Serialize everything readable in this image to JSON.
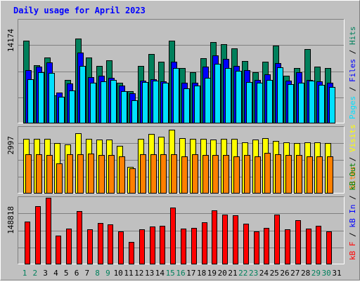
{
  "title": "Daily usage for April 2023",
  "chart_data": [
    {
      "type": "bar",
      "title": "Daily usage for April 2023",
      "categories": [
        "1",
        "2",
        "3",
        "4",
        "5",
        "6",
        "7",
        "8",
        "9",
        "10",
        "11",
        "12",
        "13",
        "14",
        "15",
        "16",
        "17",
        "18",
        "19",
        "20",
        "21",
        "22",
        "23",
        "24",
        "25",
        "26",
        "27",
        "28",
        "29",
        "30",
        "31"
      ],
      "weekend_days": [
        "1",
        "2",
        "8",
        "9",
        "15",
        "16",
        "22",
        "23",
        "29",
        "30"
      ],
      "ytick": "14174",
      "ylim": [
        0,
        17000
      ],
      "axis_label_parts": [
        "Pages",
        "Files",
        "Hits"
      ],
      "series": [
        {
          "name": "Hits",
          "color": "#00805c",
          "values": [
            13500,
            9500,
            10800,
            4500,
            7000,
            13900,
            10800,
            9400,
            10300,
            6600,
            5200,
            9400,
            11300,
            10100,
            13500,
            9000,
            8300,
            10600,
            13300,
            12900,
            12300,
            10200,
            8300,
            10100,
            12700,
            7800,
            9000,
            12100,
            9200,
            9000,
            null
          ]
        },
        {
          "name": "Files",
          "color": "#0000ff",
          "values": [
            8700,
            9300,
            10000,
            5000,
            6500,
            11600,
            7500,
            7800,
            7400,
            6100,
            4800,
            6900,
            7200,
            6800,
            10100,
            6600,
            6600,
            9300,
            11100,
            10500,
            9400,
            8700,
            7000,
            8000,
            9800,
            6900,
            8300,
            7100,
            6800,
            6600,
            null
          ]
        },
        {
          "name": "Pages",
          "color": "#00e0ff",
          "values": [
            7200,
            8300,
            8200,
            4300,
            5300,
            9400,
            6600,
            6800,
            7000,
            5200,
            3700,
            6700,
            6900,
            6600,
            9000,
            5700,
            6100,
            7400,
            9700,
            9000,
            8600,
            6700,
            6600,
            7000,
            9100,
            6400,
            6600,
            6900,
            6200,
            5900,
            null
          ]
        }
      ]
    },
    {
      "type": "bar",
      "categories": [
        "1",
        "2",
        "3",
        "4",
        "5",
        "6",
        "7",
        "8",
        "9",
        "10",
        "11",
        "12",
        "13",
        "14",
        "15",
        "16",
        "17",
        "18",
        "19",
        "20",
        "21",
        "22",
        "23",
        "24",
        "25",
        "26",
        "27",
        "28",
        "29",
        "30",
        "31"
      ],
      "ytick": "2997",
      "ylim": [
        0,
        3600
      ],
      "axis_label_parts": [
        "Sites",
        "Visits"
      ],
      "series": [
        {
          "name": "Visits",
          "color": "#ffff00",
          "values": [
            2950,
            2950,
            2950,
            2700,
            2650,
            3250,
            2950,
            2900,
            2900,
            2550,
            1400,
            2950,
            3200,
            3050,
            3450,
            3000,
            2950,
            2950,
            2900,
            2950,
            2950,
            2750,
            2900,
            3000,
            2850,
            2750,
            2700,
            2750,
            2750,
            2700,
            null
          ]
        },
        {
          "name": "Sites",
          "color": "#ff8000",
          "values": [
            2100,
            2100,
            2050,
            1600,
            2100,
            2100,
            2150,
            2050,
            2050,
            2000,
            1350,
            2100,
            2100,
            2100,
            2100,
            2000,
            2100,
            2050,
            2050,
            2050,
            2000,
            2050,
            2000,
            2200,
            2100,
            2050,
            2050,
            2000,
            2000,
            2000,
            null
          ]
        }
      ]
    },
    {
      "type": "bar",
      "categories": [
        "1",
        "2",
        "3",
        "4",
        "5",
        "6",
        "7",
        "8",
        "9",
        "10",
        "11",
        "12",
        "13",
        "14",
        "15",
        "16",
        "17",
        "18",
        "19",
        "20",
        "21",
        "22",
        "23",
        "24",
        "25",
        "26",
        "27",
        "28",
        "29",
        "30",
        "31"
      ],
      "ytick": "148818",
      "ylim": [
        0,
        180000
      ],
      "axis_label_parts": [
        "kB F",
        "kB In",
        "kB Out"
      ],
      "series": [
        {
          "name": "kB F",
          "color": "#ff0000",
          "values": [
            114000,
            155000,
            178000,
            75000,
            95000,
            142000,
            92000,
            110000,
            106000,
            88000,
            58000,
            93000,
            101000,
            103000,
            152000,
            94000,
            97000,
            111000,
            144000,
            132000,
            131000,
            108000,
            87000,
            96000,
            132000,
            93000,
            118000,
            94000,
            103000,
            88000,
            null
          ]
        }
      ]
    }
  ]
}
